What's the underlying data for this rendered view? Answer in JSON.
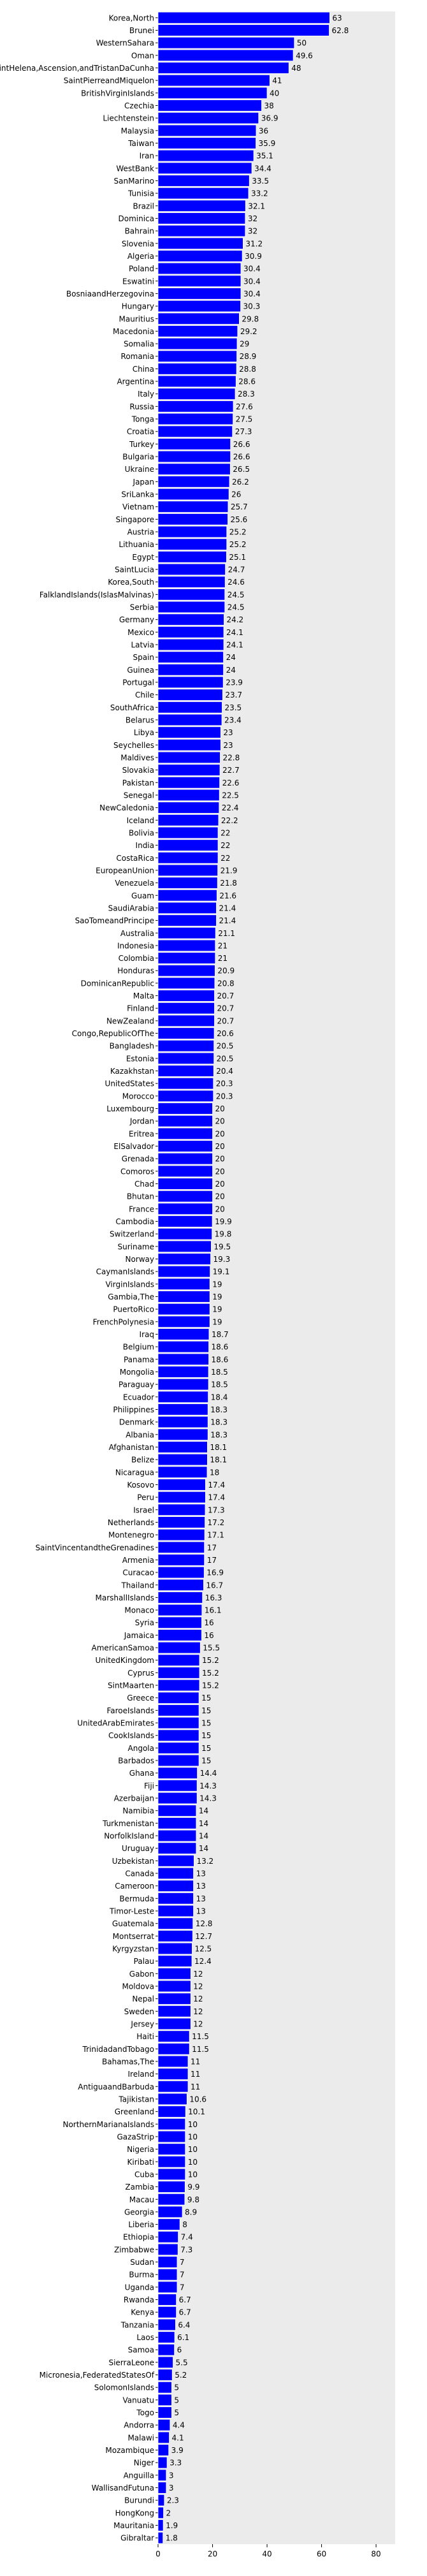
{
  "chart_data": {
    "type": "barh",
    "categories": [
      "Korea,North",
      "Brunei",
      "WesternSahara",
      "Oman",
      "SaintHelena,Ascension,andTristanDaCunha",
      "SaintPierreandMiquelon",
      "BritishVirginIslands",
      "Czechia",
      "Liechtenstein",
      "Malaysia",
      "Taiwan",
      "Iran",
      "WestBank",
      "SanMarino",
      "Tunisia",
      "Brazil",
      "Dominica",
      "Bahrain",
      "Slovenia",
      "Algeria",
      "Poland",
      "Eswatini",
      "BosniaandHerzegovina",
      "Hungary",
      "Mauritius",
      "Macedonia",
      "Somalia",
      "Romania",
      "China",
      "Argentina",
      "Italy",
      "Russia",
      "Tonga",
      "Croatia",
      "Turkey",
      "Bulgaria",
      "Ukraine",
      "Japan",
      "SriLanka",
      "Vietnam",
      "Singapore",
      "Austria",
      "Lithuania",
      "Egypt",
      "SaintLucia",
      "Korea,South",
      "FalklandIslands(IslasMalvinas)",
      "Serbia",
      "Germany",
      "Mexico",
      "Latvia",
      "Spain",
      "Guinea",
      "Portugal",
      "Chile",
      "SouthAfrica",
      "Belarus",
      "Libya",
      "Seychelles",
      "Maldives",
      "Slovakia",
      "Pakistan",
      "Senegal",
      "NewCaledonia",
      "Iceland",
      "Bolivia",
      "India",
      "CostaRica",
      "EuropeanUnion",
      "Venezuela",
      "Guam",
      "SaudiArabia",
      "SaoTomeandPrincipe",
      "Australia",
      "Indonesia",
      "Colombia",
      "Honduras",
      "DominicanRepublic",
      "Malta",
      "Finland",
      "NewZealand",
      "Congo,RepublicOfThe",
      "Bangladesh",
      "Estonia",
      "Kazakhstan",
      "UnitedStates",
      "Morocco",
      "Luxembourg",
      "Jordan",
      "Eritrea",
      "ElSalvador",
      "Grenada",
      "Comoros",
      "Chad",
      "Bhutan",
      "France",
      "Cambodia",
      "Switzerland",
      "Suriname",
      "Norway",
      "CaymanIslands",
      "VirginIslands",
      "Gambia,The",
      "PuertoRico",
      "FrenchPolynesia",
      "Iraq",
      "Belgium",
      "Panama",
      "Mongolia",
      "Paraguay",
      "Ecuador",
      "Philippines",
      "Denmark",
      "Albania",
      "Afghanistan",
      "Belize",
      "Nicaragua",
      "Kosovo",
      "Peru",
      "Israel",
      "Netherlands",
      "Montenegro",
      "SaintVincentandtheGrenadines",
      "Armenia",
      "Curacao",
      "Thailand",
      "MarshallIslands",
      "Monaco",
      "Syria",
      "Jamaica",
      "AmericanSamoa",
      "UnitedKingdom",
      "Cyprus",
      "SintMaarten",
      "Greece",
      "FaroeIslands",
      "UnitedArabEmirates",
      "CookIslands",
      "Angola",
      "Barbados",
      "Ghana",
      "Fiji",
      "Azerbaijan",
      "Namibia",
      "Turkmenistan",
      "NorfolkIsland",
      "Uruguay",
      "Uzbekistan",
      "Canada",
      "Cameroon",
      "Bermuda",
      "Timor-Leste",
      "Guatemala",
      "Montserrat",
      "Kyrgyzstan",
      "Palau",
      "Gabon",
      "Moldova",
      "Nepal",
      "Sweden",
      "Jersey",
      "Haiti",
      "TrinidadandTobago",
      "Bahamas,The",
      "Ireland",
      "AntiguaandBarbuda",
      "Tajikistan",
      "Greenland",
      "NorthernMarianaIslands",
      "GazaStrip",
      "Nigeria",
      "Kiribati",
      "Cuba",
      "Zambia",
      "Macau",
      "Georgia",
      "Liberia",
      "Ethiopia",
      "Zimbabwe",
      "Sudan",
      "Burma",
      "Uganda",
      "Rwanda",
      "Kenya",
      "Tanzania",
      "Laos",
      "Samoa",
      "SierraLeone",
      "Micronesia,FederatedStatesOf",
      "SolomonIslands",
      "Vanuatu",
      "Togo",
      "Andorra",
      "Malawi",
      "Mozambique",
      "Niger",
      "Anguilla",
      "WallisandFutuna",
      "Burundi",
      "HongKong",
      "Mauritania",
      "Gibraltar"
    ],
    "values": [
      63,
      62.8,
      50,
      49.6,
      48,
      41,
      40,
      38,
      36.9,
      36,
      35.9,
      35.1,
      34.4,
      33.5,
      33.2,
      32.1,
      32,
      32,
      31.2,
      30.9,
      30.4,
      30.4,
      30.4,
      30.3,
      29.8,
      29.2,
      29,
      28.9,
      28.8,
      28.6,
      28.3,
      27.6,
      27.5,
      27.3,
      26.6,
      26.6,
      26.5,
      26.2,
      26,
      25.7,
      25.6,
      25.2,
      25.2,
      25.1,
      24.7,
      24.6,
      24.5,
      24.5,
      24.2,
      24.1,
      24.1,
      24,
      24,
      23.9,
      23.7,
      23.5,
      23.4,
      23,
      23,
      22.8,
      22.7,
      22.6,
      22.5,
      22.4,
      22.2,
      22,
      22,
      22,
      21.9,
      21.8,
      21.6,
      21.4,
      21.4,
      21.1,
      21,
      21,
      20.9,
      20.8,
      20.7,
      20.7,
      20.7,
      20.6,
      20.5,
      20.5,
      20.4,
      20.3,
      20.3,
      20,
      20,
      20,
      20,
      20,
      20,
      20,
      20,
      20,
      19.9,
      19.8,
      19.5,
      19.3,
      19.1,
      19,
      19,
      19,
      19,
      18.7,
      18.6,
      18.6,
      18.5,
      18.5,
      18.4,
      18.3,
      18.3,
      18.3,
      18.1,
      18.1,
      18,
      17.4,
      17.4,
      17.3,
      17.2,
      17.1,
      17,
      17,
      16.9,
      16.7,
      16.3,
      16.1,
      16,
      16,
      15.5,
      15.2,
      15.2,
      15.2,
      15,
      15,
      15,
      15,
      15,
      15,
      14.4,
      14.3,
      14.3,
      14,
      14,
      14,
      14,
      13.2,
      13,
      13,
      13,
      13,
      12.8,
      12.7,
      12.5,
      12.4,
      12,
      12,
      12,
      12,
      12,
      11.5,
      11.5,
      11,
      11,
      11,
      10.6,
      10.1,
      10,
      10,
      10,
      10,
      10,
      9.9,
      9.8,
      8.9,
      8,
      7.4,
      7.3,
      7,
      7,
      7,
      6.7,
      6.7,
      6.4,
      6.1,
      6,
      5.5,
      5.2,
      5,
      5,
      5,
      4.4,
      4.1,
      3.9,
      3.3,
      3,
      3,
      2.3,
      2,
      1.9,
      1.8
    ],
    "color": "#0000ff",
    "xlim": [
      0,
      87
    ],
    "xticks": [
      0,
      20,
      40,
      60,
      80
    ],
    "grid": false
  }
}
